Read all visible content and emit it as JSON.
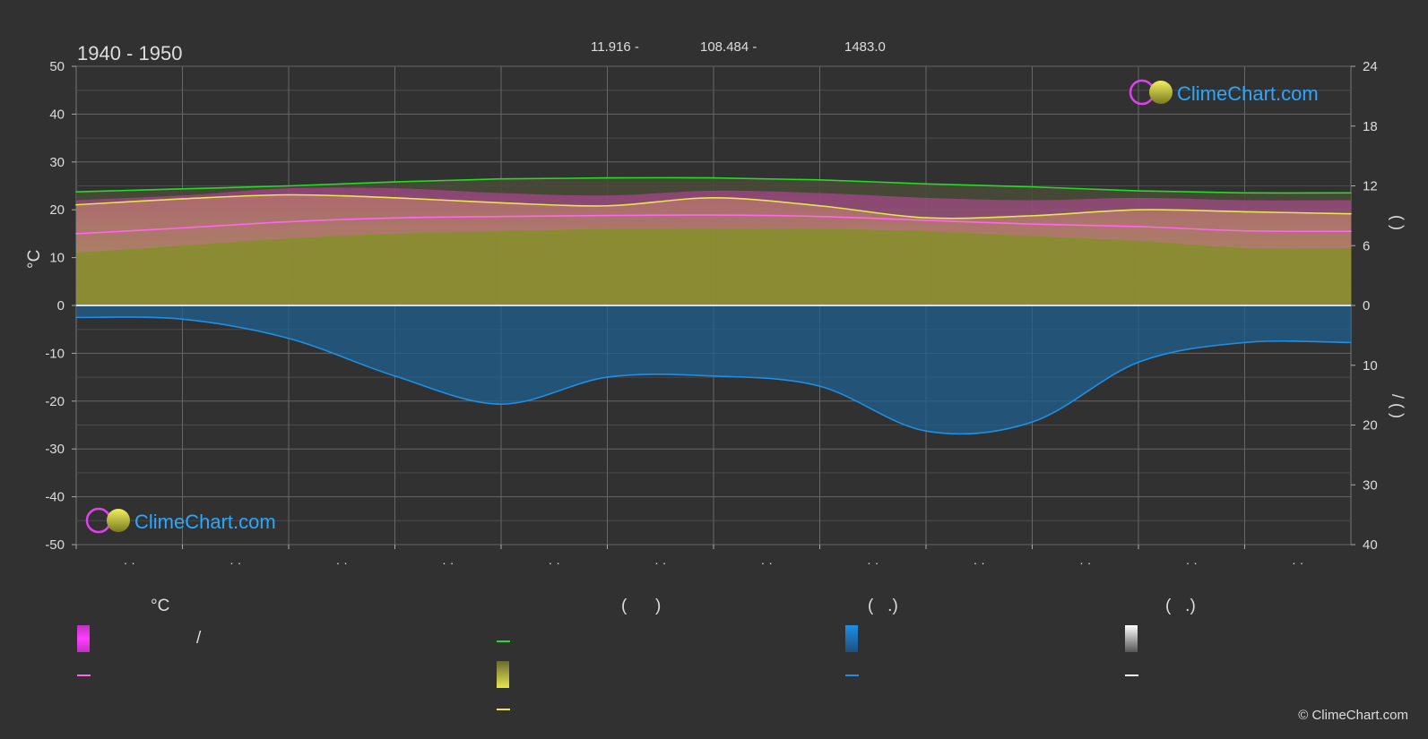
{
  "header": {
    "period": "1940 - 1950",
    "latitude": "11.916 -",
    "longitude": "108.484 -",
    "elevation": "1483.0"
  },
  "brand": {
    "logo_text": "ClimeChart.com",
    "copyright": "© ClimeChart.com"
  },
  "colors": {
    "background": "#313131",
    "grid": "#5a5a5a",
    "daylight": "#22dd22",
    "sunshine": "#e6e64d",
    "temp_mean": "#ff66ee",
    "temp_range": "#d040b0",
    "sun_fill": "#8f8f34",
    "rain": "#1e8fe6",
    "rain_fill": "#1f5f8e",
    "brand_blue": "#2aa7ff",
    "brand_magenta": "#e040f0",
    "brand_yellow": "#e6e64d"
  },
  "chart_data": {
    "type": "line",
    "left_axis": {
      "label": "°C",
      "min": -50,
      "max": 50,
      "ticks": [
        50,
        40,
        30,
        20,
        10,
        0,
        -10,
        -20,
        -30,
        -40,
        -50
      ]
    },
    "right_axis_top": {
      "min": 0,
      "max": 24,
      "ticks": [
        24,
        18,
        12,
        6,
        0
      ],
      "label_marks": "(  )"
    },
    "right_axis_bottom": {
      "min": 0,
      "max": 40,
      "ticks": [
        0,
        10,
        20,
        30,
        40
      ],
      "label_marks": "/ (  )"
    },
    "x_tick_labels": [
      "· ·",
      "· ·",
      "· ·",
      "· ·",
      "· ·",
      "· ·",
      "· ·",
      "· ·",
      "· ·",
      "· ·",
      "· ·",
      "· ·"
    ],
    "x": [
      0,
      1,
      2,
      3,
      4,
      5,
      6,
      7,
      8,
      9,
      10,
      11,
      12
    ],
    "series": [
      {
        "key": "daylight",
        "axis": "right_top",
        "values": [
          11.4,
          11.7,
          12.0,
          12.4,
          12.7,
          12.8,
          12.8,
          12.6,
          12.2,
          11.9,
          11.5,
          11.3,
          11.3
        ]
      },
      {
        "key": "sunshine",
        "axis": "right_top",
        "values": [
          10.1,
          10.7,
          11.1,
          10.8,
          10.3,
          10.0,
          10.8,
          10.0,
          8.8,
          9.0,
          9.6,
          9.4,
          9.2
        ]
      },
      {
        "key": "temp_mean",
        "axis": "left",
        "values": [
          15.0,
          16.2,
          17.5,
          18.3,
          18.6,
          18.8,
          18.9,
          18.6,
          17.8,
          17.0,
          16.5,
          15.6,
          15.5
        ]
      },
      {
        "key": "rain",
        "axis": "right_bottom",
        "values": [
          2.0,
          2.3,
          5.5,
          11.8,
          16.5,
          12.0,
          11.8,
          13.5,
          21.0,
          19.5,
          9.5,
          6.2,
          6.2
        ]
      }
    ],
    "temp_band": {
      "max_values": [
        22,
        23,
        24.5,
        24.5,
        23.5,
        23,
        24,
        23.5,
        22.5,
        22,
        22.5,
        22,
        22
      ],
      "min_values": [
        11,
        12.5,
        14,
        15,
        15.5,
        16,
        16,
        16,
        15.5,
        14.5,
        13.5,
        12,
        12
      ]
    },
    "grid": true
  },
  "legend": {
    "group_titles": [
      "°C",
      "(      )",
      "(   .)",
      "(   .)"
    ],
    "slash_text": "/"
  }
}
